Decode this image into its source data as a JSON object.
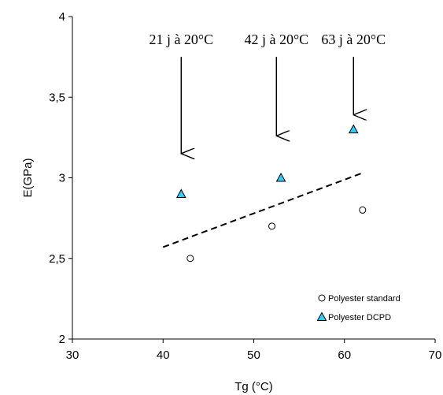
{
  "chart_data": {
    "type": "scatter",
    "xlabel": "Tg (°C)",
    "ylabel": "E(GPa)",
    "xlim": [
      30,
      70
    ],
    "ylim": [
      2,
      4
    ],
    "x_ticks": [
      30,
      40,
      50,
      60,
      70
    ],
    "y_ticks": [
      2,
      2.5,
      3,
      3.5,
      4
    ],
    "x_tick_labels": [
      "30",
      "40",
      "50",
      "60",
      "70"
    ],
    "y_tick_labels": [
      "2",
      "2,5",
      "3",
      "3,5",
      "4"
    ],
    "grid": false,
    "legend_position": "bottom-right",
    "series": [
      {
        "name": "Polyester standard",
        "marker": "circle",
        "color": "#ffffff",
        "edge_color": "#000000",
        "points": [
          {
            "x": 43,
            "y": 2.5
          },
          {
            "x": 52,
            "y": 2.7
          },
          {
            "x": 62,
            "y": 2.8
          }
        ]
      },
      {
        "name": "Polyester DCPD",
        "marker": "triangle",
        "color": "#33ccff",
        "edge_color": "#000000",
        "points": [
          {
            "x": 42,
            "y": 2.9
          },
          {
            "x": 53,
            "y": 3.0
          },
          {
            "x": 61,
            "y": 3.3
          }
        ]
      }
    ],
    "trendline": {
      "style": "dashed",
      "color": "#000000",
      "points": [
        {
          "x": 40,
          "y": 2.57
        },
        {
          "x": 62,
          "y": 3.03
        }
      ]
    },
    "annotations": [
      {
        "text": "21 j à 20°C",
        "x": 42,
        "arrow_from_y": 3.75,
        "arrow_to_y": 3.15
      },
      {
        "text": "42 j à 20°C",
        "x": 52.5,
        "arrow_from_y": 3.75,
        "arrow_to_y": 3.26
      },
      {
        "text": "63 j à 20°C",
        "x": 61,
        "arrow_from_y": 3.75,
        "arrow_to_y": 3.39
      }
    ]
  }
}
